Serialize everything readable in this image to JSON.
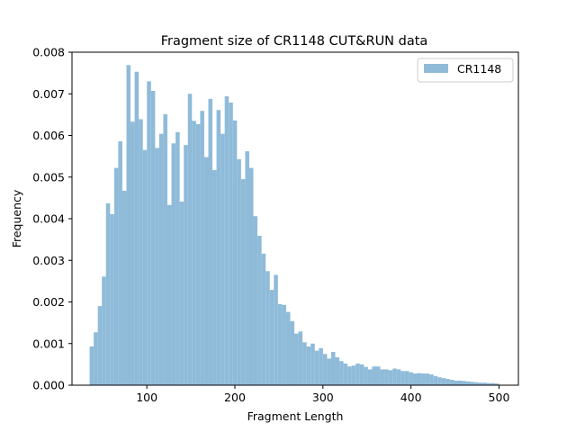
{
  "chart_data": {
    "type": "bar",
    "title": "Fragment size of CR1148 CUT&RUN data",
    "xlabel": "Fragment Length",
    "ylabel": "Frequency",
    "xlim": [
      15,
      522
    ],
    "ylim": [
      0,
      0.008
    ],
    "xticks": [
      100,
      200,
      300,
      400,
      500
    ],
    "yticks": [
      0.0,
      0.001,
      0.002,
      0.003,
      0.004,
      0.005,
      0.006,
      0.007,
      0.008
    ],
    "ytick_labels": [
      "0.000",
      "0.001",
      "0.002",
      "0.003",
      "0.004",
      "0.005",
      "0.006",
      "0.007",
      "0.008"
    ],
    "bin_start": 35,
    "bin_width": 4.65,
    "legend_position": "top-right",
    "series": [
      {
        "name": "CR1148",
        "color": "#8fbbd9",
        "values": [
          0.00093,
          0.00127,
          0.0019,
          0.00261,
          0.00437,
          0.00411,
          0.00522,
          0.00586,
          0.00467,
          0.00769,
          0.00633,
          0.00753,
          0.00639,
          0.00565,
          0.0073,
          0.00707,
          0.0057,
          0.00604,
          0.00651,
          0.00433,
          0.00581,
          0.00608,
          0.00441,
          0.00577,
          0.007,
          0.00635,
          0.00627,
          0.00659,
          0.00548,
          0.00688,
          0.00517,
          0.00661,
          0.00604,
          0.00694,
          0.00679,
          0.00636,
          0.00543,
          0.00495,
          0.00562,
          0.00522,
          0.00406,
          0.00359,
          0.00316,
          0.00274,
          0.00229,
          0.00265,
          0.00195,
          0.00193,
          0.00176,
          0.00154,
          0.00124,
          0.00129,
          0.00103,
          0.00093,
          0.001,
          0.00083,
          0.00089,
          0.00075,
          0.00064,
          0.0008,
          0.00067,
          0.00058,
          0.00052,
          0.00045,
          0.00047,
          0.00052,
          0.0005,
          0.00044,
          0.00038,
          0.00045,
          0.00045,
          0.00038,
          0.00038,
          0.00036,
          0.0004,
          0.00038,
          0.00034,
          0.00034,
          0.00031,
          0.00028,
          0.00029,
          0.00028,
          0.00028,
          0.00026,
          0.00022,
          0.00019,
          0.00017,
          0.00015,
          0.00013,
          0.00011,
          0.00011,
          0.0001,
          9e-05,
          8e-05,
          7e-05,
          6e-05,
          6e-05,
          5e-05,
          5e-05,
          4e-05
        ]
      }
    ]
  }
}
